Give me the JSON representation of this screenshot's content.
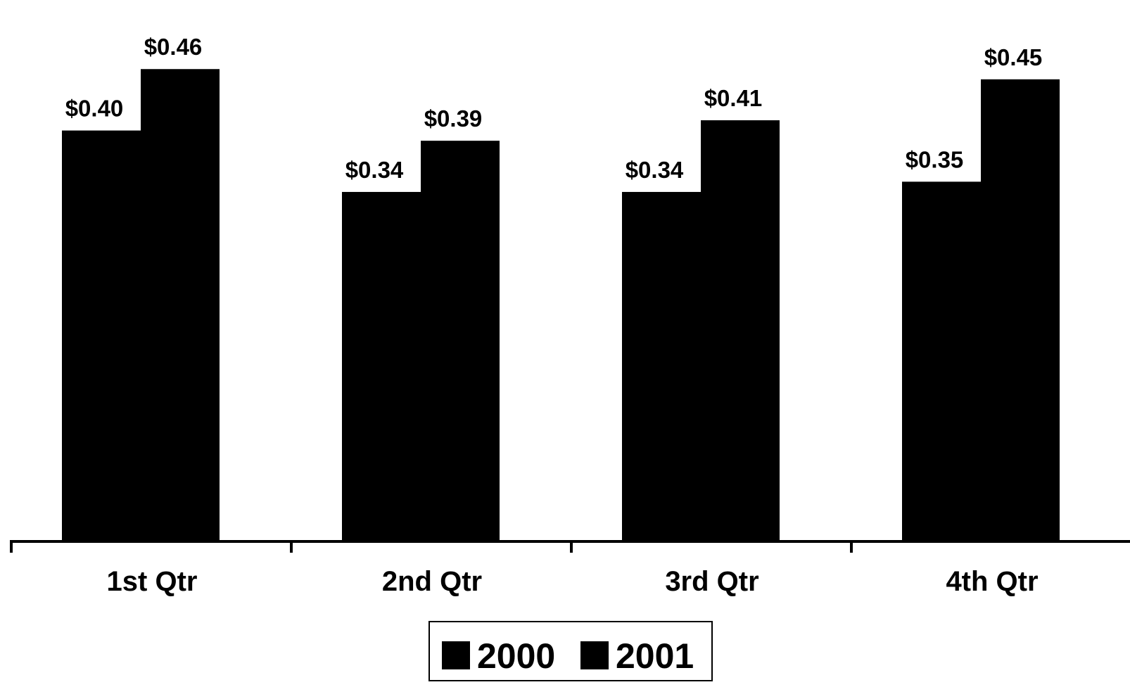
{
  "chart_data": {
    "type": "bar",
    "title": "",
    "xlabel": "",
    "ylabel": "",
    "categories": [
      "1st Qtr",
      "2nd Qtr",
      "3rd Qtr",
      "4th Qtr"
    ],
    "series": [
      {
        "name": "2000",
        "values": [
          0.4,
          0.34,
          0.34,
          0.35
        ],
        "labels": [
          "$0.40",
          "$0.34",
          "$0.34",
          "$0.35"
        ],
        "color": "#000000"
      },
      {
        "name": "2001",
        "values": [
          0.46,
          0.39,
          0.41,
          0.45
        ],
        "labels": [
          "$0.46",
          "$0.39",
          "$0.41",
          "$0.45"
        ],
        "color": "#000000"
      }
    ],
    "ylim": [
      0,
      0.5
    ],
    "grid": false,
    "legend_position": "bottom-center"
  }
}
